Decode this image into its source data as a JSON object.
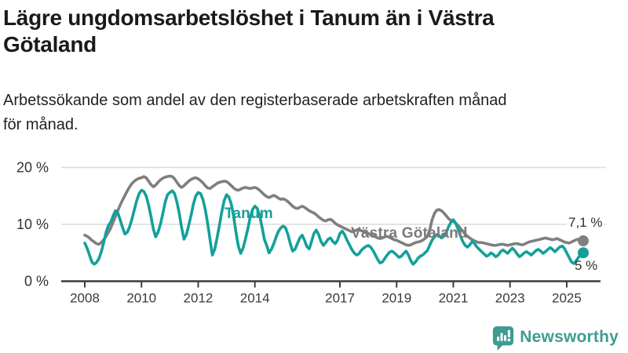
{
  "header": {
    "title_lines": [
      "Lägre ungdomsarbetslöshet i Tanum än i Västra",
      "Götaland"
    ],
    "subtitle_lines": [
      "Arbetssökande som andel av den registerbaserade arbetskraften månad",
      "för månad."
    ]
  },
  "chart_data": {
    "type": "line",
    "title": "Lägre ungdomsarbetslöshet i Tanum än i Västra Götaland",
    "subtitle": "Arbetssökande som andel av den registerbaserade arbetskraften månad för månad.",
    "x_unit": "month",
    "x_start": "2008-01",
    "x_end": "2025-08",
    "ylim": [
      0,
      20
    ],
    "grid": "horizontal",
    "legend_position": "inline-labels",
    "y_ticks": [
      {
        "value": 0,
        "label": "0 %"
      },
      {
        "value": 10,
        "label": "10 %"
      },
      {
        "value": 20,
        "label": "20 %"
      }
    ],
    "x_ticks": [
      {
        "year": 2008,
        "label": "2008"
      },
      {
        "year": 2010,
        "label": "2010"
      },
      {
        "year": 2012,
        "label": "2012"
      },
      {
        "year": 2014,
        "label": "2014"
      },
      {
        "year": 2017,
        "label": "2017"
      },
      {
        "year": 2019,
        "label": "2019"
      },
      {
        "year": 2021,
        "label": "2021"
      },
      {
        "year": 2023,
        "label": "2023"
      },
      {
        "year": 2025,
        "label": "2025"
      }
    ],
    "series": [
      {
        "name": "Tanum",
        "color": "#13a09b",
        "end_label": "5 %",
        "end_value": 5.0,
        "values": [
          6.7,
          5.8,
          4.6,
          3.4,
          3.0,
          3.3,
          4.0,
          5.2,
          6.8,
          8.6,
          9.8,
          10.4,
          11.5,
          12.4,
          12.0,
          10.8,
          9.4,
          8.3,
          8.6,
          9.6,
          11.0,
          12.6,
          14.2,
          15.4,
          16.0,
          15.8,
          15.0,
          13.4,
          11.4,
          9.2,
          7.8,
          8.6,
          10.0,
          11.8,
          13.8,
          15.2,
          15.6,
          15.9,
          15.4,
          13.9,
          11.9,
          9.4,
          7.4,
          8.2,
          9.8,
          11.6,
          13.6,
          15.0,
          15.6,
          15.4,
          14.4,
          12.6,
          10.2,
          7.4,
          4.6,
          5.6,
          7.6,
          9.8,
          12.2,
          14.2,
          15.2,
          14.8,
          13.6,
          11.4,
          8.6,
          6.2,
          4.9,
          5.8,
          7.4,
          9.2,
          11.2,
          12.6,
          13.2,
          12.8,
          11.6,
          9.6,
          7.4,
          6.3,
          5.0,
          5.6,
          6.6,
          7.8,
          8.8,
          9.4,
          9.7,
          9.4,
          8.2,
          6.6,
          5.3,
          5.6,
          6.6,
          7.6,
          8.1,
          7.2,
          6.1,
          5.7,
          7.0,
          8.4,
          9.0,
          8.2,
          7.0,
          6.3,
          6.8,
          7.4,
          7.6,
          7.0,
          6.6,
          7.2,
          8.4,
          8.8,
          8.2,
          7.2,
          6.4,
          5.6,
          5.0,
          4.6,
          4.8,
          5.4,
          5.8,
          6.1,
          6.3,
          6.0,
          5.4,
          4.6,
          3.8,
          3.2,
          3.4,
          4.0,
          4.6,
          5.1,
          5.3,
          5.0,
          4.6,
          4.2,
          4.4,
          4.9,
          5.3,
          4.6,
          3.6,
          3.0,
          3.4,
          4.0,
          4.4,
          4.6,
          5.0,
          5.4,
          6.3,
          7.2,
          7.8,
          8.2,
          8.0,
          7.6,
          7.9,
          8.6,
          9.6,
          10.4,
          10.8,
          10.2,
          9.2,
          8.0,
          7.0,
          6.3,
          6.0,
          6.4,
          7.0,
          6.6,
          6.0,
          5.6,
          5.2,
          4.8,
          4.4,
          4.6,
          5.0,
          4.7,
          4.3,
          4.6,
          5.2,
          5.5,
          5.2,
          4.9,
          5.4,
          5.8,
          5.4,
          4.8,
          4.3,
          4.6,
          5.0,
          5.2,
          4.9,
          4.6,
          5.0,
          5.4,
          5.6,
          5.3,
          4.9,
          5.2,
          5.6,
          5.9,
          5.6,
          5.2,
          5.6,
          6.0,
          6.2,
          5.8,
          5.0,
          4.2,
          3.4,
          3.1,
          3.6,
          4.2,
          4.7,
          5.0
        ]
      },
      {
        "name": "Västra Götaland",
        "color": "#7f7f7f",
        "end_label": "7,1 %",
        "end_value": 7.1,
        "values": [
          8.1,
          7.9,
          7.6,
          7.2,
          6.9,
          6.6,
          6.5,
          6.8,
          7.3,
          7.9,
          8.6,
          9.4,
          10.4,
          11.4,
          12.4,
          13.4,
          14.3,
          15.1,
          15.9,
          16.6,
          17.2,
          17.6,
          17.9,
          18.1,
          18.2,
          18.4,
          18.2,
          17.6,
          17.0,
          16.6,
          16.9,
          17.4,
          17.8,
          18.1,
          18.3,
          18.4,
          18.5,
          18.4,
          18.0,
          17.4,
          16.8,
          16.5,
          16.8,
          17.2,
          17.6,
          17.9,
          18.1,
          18.2,
          18.0,
          17.7,
          17.3,
          16.8,
          16.4,
          16.3,
          16.6,
          16.9,
          17.2,
          17.4,
          17.5,
          17.6,
          17.5,
          17.2,
          16.8,
          16.4,
          16.1,
          16.0,
          16.2,
          16.4,
          16.5,
          16.4,
          16.3,
          16.4,
          16.5,
          16.3,
          16.0,
          15.6,
          15.2,
          14.9,
          14.7,
          14.9,
          15.1,
          14.9,
          14.6,
          14.4,
          14.5,
          14.3,
          14.0,
          13.6,
          13.2,
          12.9,
          12.8,
          13.0,
          13.2,
          13.0,
          12.7,
          12.4,
          12.2,
          12.0,
          11.7,
          11.3,
          11.0,
          10.7,
          10.6,
          10.8,
          10.9,
          10.6,
          10.2,
          9.9,
          9.7,
          9.5,
          9.3,
          9.1,
          8.9,
          8.7,
          8.8,
          9.0,
          9.1,
          8.9,
          8.7,
          8.5,
          8.4,
          8.2,
          8.0,
          7.8,
          7.6,
          7.5,
          7.6,
          7.8,
          7.9,
          7.7,
          7.5,
          7.3,
          7.2,
          7.0,
          6.8,
          6.6,
          6.4,
          6.3,
          6.4,
          6.6,
          6.8,
          6.9,
          7.0,
          7.2,
          7.5,
          7.9,
          9.0,
          10.8,
          11.9,
          12.5,
          12.6,
          12.4,
          12.0,
          11.5,
          11.0,
          10.7,
          10.5,
          10.2,
          9.8,
          9.3,
          8.8,
          8.3,
          7.9,
          7.6,
          7.3,
          7.1,
          6.9,
          6.8,
          6.8,
          6.7,
          6.6,
          6.5,
          6.4,
          6.3,
          6.3,
          6.4,
          6.5,
          6.5,
          6.4,
          6.3,
          6.4,
          6.5,
          6.6,
          6.6,
          6.5,
          6.4,
          6.5,
          6.7,
          6.9,
          7.0,
          7.1,
          7.2,
          7.3,
          7.4,
          7.5,
          7.6,
          7.5,
          7.4,
          7.3,
          7.4,
          7.5,
          7.3,
          7.1,
          6.9,
          6.8,
          6.7,
          6.9,
          7.1,
          7.3,
          7.4,
          7.2,
          7.1
        ]
      }
    ]
  },
  "footer": {
    "brand": "Newsworthy"
  },
  "colors": {
    "tanum_teal": "#13a09b",
    "vg_gray": "#7f7f7f",
    "axis": "#3c3c3c",
    "grid": "#dcdcdc",
    "text": "#1a1a1a",
    "logo_teal": "#3e9c92"
  }
}
